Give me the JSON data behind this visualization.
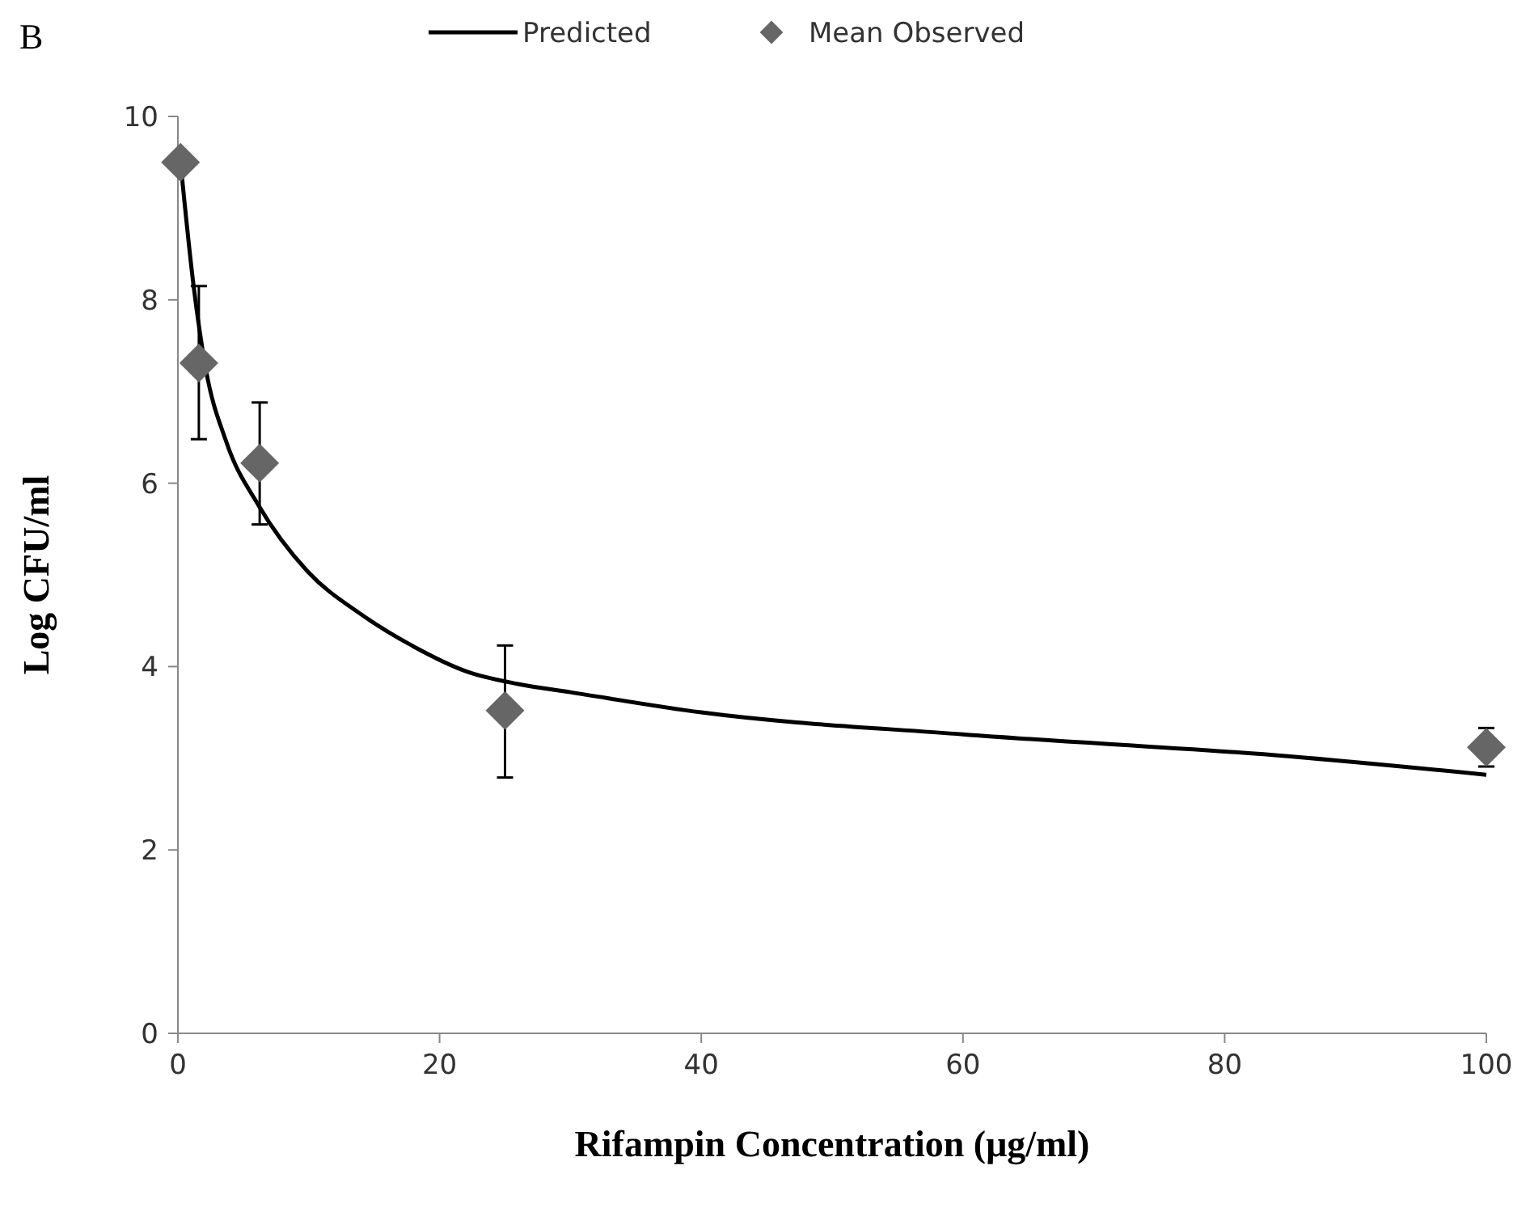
{
  "chart_data": {
    "type": "scatter",
    "title": "B",
    "xlabel": "Rifampin Concentration (μg/ml)",
    "ylabel": "Log CFU/ml",
    "xlim": [
      0,
      100
    ],
    "xticks": [
      0,
      20,
      40,
      60,
      80,
      100
    ],
    "ylim": [
      0,
      10
    ],
    "yticks": [
      0,
      2,
      4,
      6,
      8,
      10
    ],
    "grid": false,
    "legend": "top",
    "series": [
      {
        "name": "Predicted",
        "type": "line",
        "color": "#000000",
        "marker": "none",
        "line_style": "solid",
        "x": [
          0.2,
          1.2,
          2.1,
          3.7,
          6.2,
          9.9,
          14,
          18,
          22,
          26,
          30,
          40,
          60,
          85,
          100
        ],
        "values": [
          9.5,
          8.15,
          7.27,
          6.45,
          5.75,
          5.04,
          4.57,
          4.22,
          3.95,
          3.81,
          3.72,
          3.5,
          3.26,
          3.02,
          2.82
        ]
      },
      {
        "name": "Mean Observed",
        "type": "scatter",
        "color": "#666666",
        "marker": "diamond",
        "x": [
          0.2,
          1.6,
          6.25,
          25,
          100
        ],
        "values": [
          9.5,
          7.31,
          6.22,
          3.52,
          3.12
        ],
        "errors": [
          null,
          [
            6.48,
            8.15
          ],
          [
            5.55,
            6.88
          ],
          [
            2.79,
            4.23
          ],
          [
            2.91,
            3.33
          ]
        ]
      }
    ]
  }
}
